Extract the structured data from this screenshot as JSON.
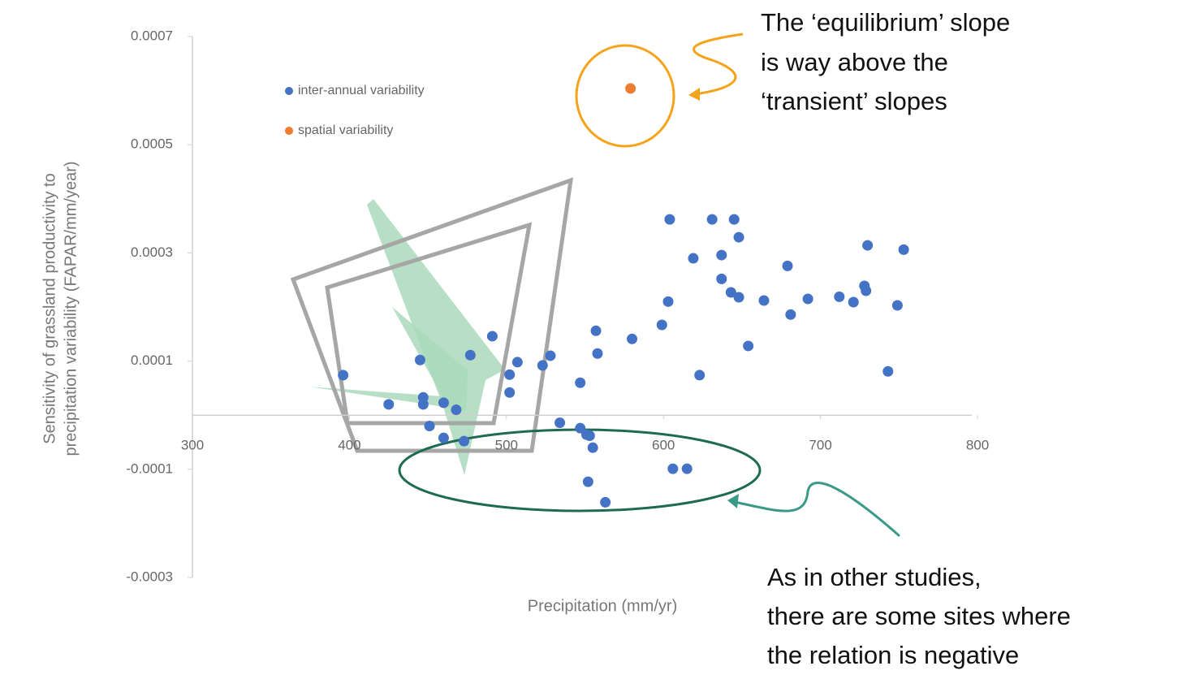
{
  "chart_data": {
    "type": "scatter",
    "x_label": "Precipitation (mm/yr)",
    "y_label": [
      "Sensitivity of grassland productivity to",
      "precipitation variability (FAPAR/mm/year)"
    ],
    "xlim": [
      300,
      800
    ],
    "xticks": [
      300,
      400,
      500,
      600,
      700,
      800
    ],
    "ylim": [
      -0.0003,
      0.0007
    ],
    "yticks": [
      -0.0003,
      -0.0001,
      0.0001,
      0.0003,
      0.0005,
      0.0007
    ],
    "series": [
      {
        "name": "inter-annual variability",
        "color": "#4472c4",
        "x": [
          396,
          425,
          445,
          447,
          447,
          451,
          460,
          460,
          468,
          473,
          477,
          491,
          502,
          502,
          507,
          523,
          528,
          534,
          547,
          547,
          551,
          553,
          555,
          552,
          557,
          558,
          563,
          580,
          599,
          603,
          604,
          606,
          615,
          619,
          623,
          631,
          637,
          637,
          643,
          645,
          648,
          648,
          654,
          664,
          679,
          681,
          692,
          712,
          721,
          728,
          729,
          730,
          743,
          749,
          753
        ],
        "values": [
          7.4e-05,
          2e-05,
          0.000102,
          3.3e-05,
          2e-05,
          -2e-05,
          2.3e-05,
          -4.2e-05,
          1e-05,
          -4.8e-05,
          0.000111,
          0.000146,
          7.5e-05,
          4.2e-05,
          9.8e-05,
          9.2e-05,
          0.00011,
          -1.4e-05,
          6e-05,
          -2.4e-05,
          -3.6e-05,
          -3.8e-05,
          -6e-05,
          -0.000123,
          0.000156,
          0.000114,
          -0.000161,
          0.000141,
          0.000167,
          0.00021,
          0.000362,
          -9.9e-05,
          -9.9e-05,
          0.00029,
          7.4e-05,
          0.000362,
          0.000252,
          0.000296,
          0.000227,
          0.000362,
          0.000329,
          0.000218,
          0.000128,
          0.000212,
          0.000276,
          0.000186,
          0.000215,
          0.000219,
          0.000209,
          0.000239,
          0.00023,
          0.000314,
          8.1e-05,
          0.000203,
          0.000306
        ]
      },
      {
        "name": "spatial variability",
        "color": "#ed7d31",
        "x": [
          579
        ],
        "values": [
          0.000604
        ]
      }
    ],
    "annotations": [
      [
        "The ‘equilibrium’ slope",
        "is way above the",
        "‘transient’ slopes"
      ],
      [
        "As in other studies,",
        "there are some sites where",
        "the relation is negative"
      ]
    ]
  }
}
